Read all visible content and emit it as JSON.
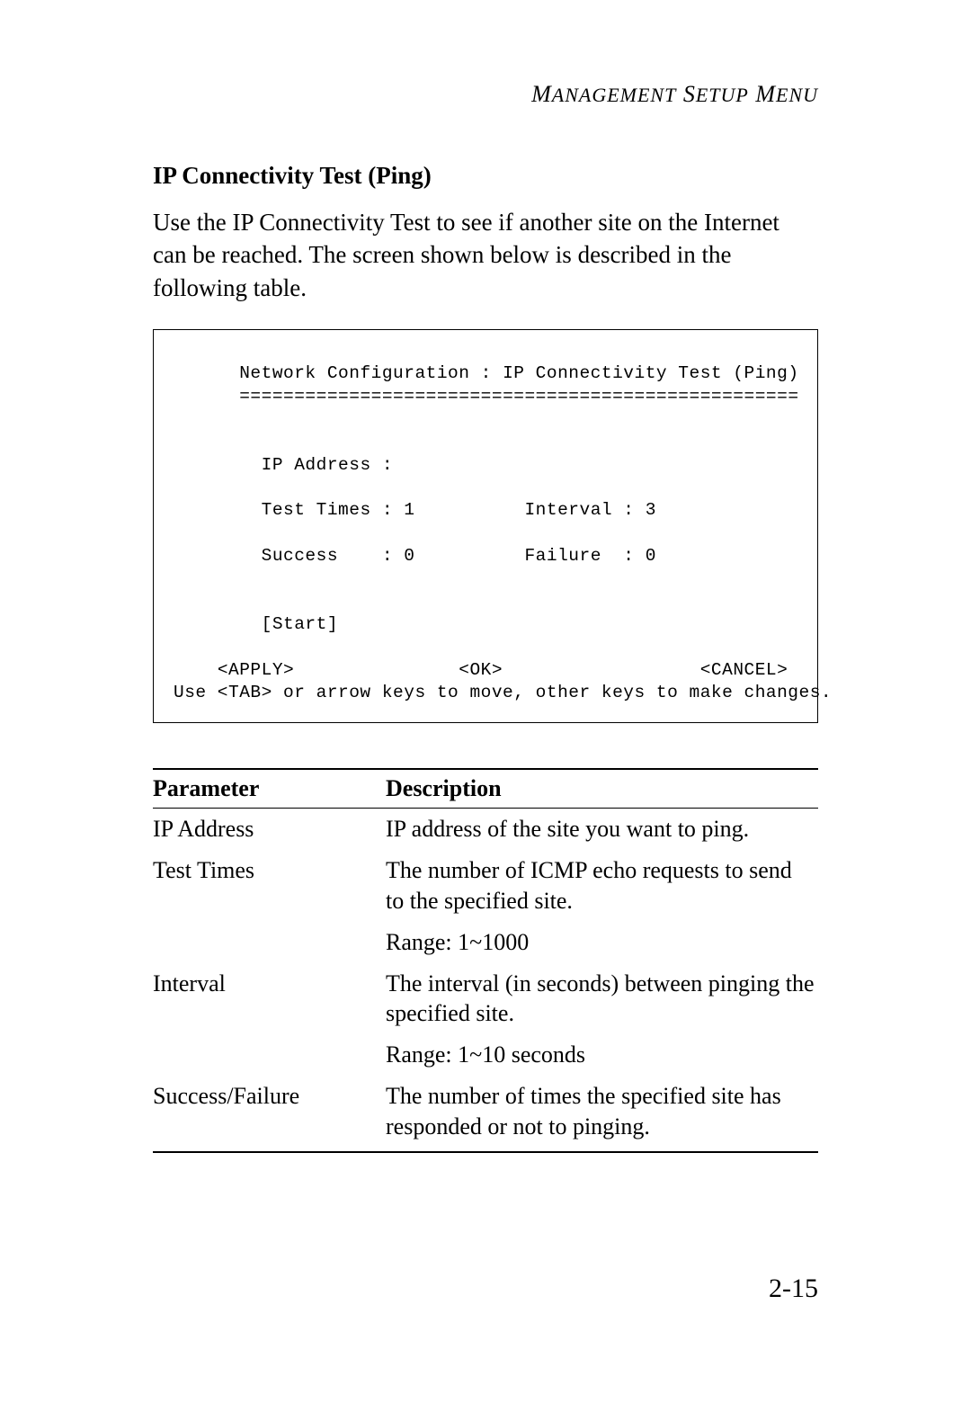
{
  "header": {
    "title_html": "M<small>ANAGEMENT</small> S<small>ETUP</small> M<small>ENU</small>",
    "title_plain": "MANAGEMENT SETUP MENU"
  },
  "section": {
    "heading": "IP Connectivity Test (Ping)",
    "intro": "Use the IP Connectivity Test to see if another site on the Internet can be reached. The screen shown below is described in the following table."
  },
  "terminal": {
    "title_line": "Network Configuration : IP Connectivity Test (Ping)",
    "divider": "===================================================",
    "fields": {
      "ip_address_label": "IP Address :",
      "test_times_label": "Test Times : 1",
      "interval_label": "Interval : 3",
      "success_label": "Success    : 0",
      "failure_label": "Failure  : 0",
      "start_label": "[Start]"
    },
    "buttons": {
      "apply": "<APPLY>",
      "ok": "<OK>",
      "cancel": "<CANCEL>"
    },
    "hint": "Use <TAB> or arrow keys to move, other keys to make changes."
  },
  "table": {
    "columns": [
      "Parameter",
      "Description"
    ],
    "rows": [
      {
        "param": "IP Address",
        "desc": "IP address of the site you want to ping."
      },
      {
        "param": "Test Times",
        "desc": "The number of ICMP echo requests to send to the specified site.",
        "sub": "Range: 1~1000"
      },
      {
        "param": "Interval",
        "desc": "The interval (in seconds) between pinging the specified site.",
        "sub": "Range: 1~10 seconds"
      },
      {
        "param": "Success/Failure",
        "desc": "The number of times the specified site has responded or not to pinging."
      }
    ]
  },
  "page_number": "2-15",
  "style": {
    "text_color": "#000000",
    "background_color": "#ffffff",
    "border_color": "#000000",
    "body_fontsize_pt": 20,
    "heading_fontsize_pt": 20,
    "mono_fontsize_pt": 15,
    "page_number_fontsize_pt": 22
  }
}
